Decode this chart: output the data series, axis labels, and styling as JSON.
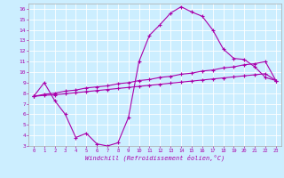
{
  "xlabel": "Windchill (Refroidissement éolien,°C)",
  "ylabel": "",
  "bg_color": "#cceeff",
  "line_color": "#aa00aa",
  "grid_color": "#ffffff",
  "xmin": -0.5,
  "xmax": 23.5,
  "ymin": 3,
  "ymax": 16,
  "yticks": [
    3,
    4,
    5,
    6,
    7,
    8,
    9,
    10,
    11,
    12,
    13,
    14,
    15,
    16
  ],
  "xticks": [
    0,
    1,
    2,
    3,
    4,
    5,
    6,
    7,
    8,
    9,
    10,
    11,
    12,
    13,
    14,
    15,
    16,
    17,
    18,
    19,
    20,
    21,
    22,
    23
  ],
  "line1_x": [
    0,
    1,
    2,
    3,
    4,
    5,
    6,
    7,
    8,
    9,
    10,
    11,
    12,
    13,
    14,
    15,
    16,
    17,
    18,
    19,
    20,
    21,
    22,
    23
  ],
  "line1_y": [
    7.7,
    9.0,
    7.3,
    6.0,
    3.8,
    4.2,
    3.2,
    3.0,
    3.3,
    5.7,
    11.0,
    13.5,
    14.5,
    15.6,
    16.2,
    15.7,
    15.3,
    14.0,
    12.2,
    11.3,
    11.2,
    10.5,
    9.5,
    9.2
  ],
  "line2_x": [
    0,
    1,
    2,
    3,
    4,
    5,
    6,
    7,
    8,
    9,
    10,
    11,
    12,
    13,
    14,
    15,
    16,
    17,
    18,
    19,
    20,
    21,
    22,
    23
  ],
  "line2_y": [
    7.7,
    7.9,
    8.0,
    8.2,
    8.3,
    8.5,
    8.6,
    8.7,
    8.9,
    9.0,
    9.2,
    9.3,
    9.5,
    9.6,
    9.8,
    9.9,
    10.1,
    10.2,
    10.4,
    10.5,
    10.7,
    10.8,
    11.0,
    9.2
  ],
  "line3_x": [
    0,
    1,
    2,
    3,
    4,
    5,
    6,
    7,
    8,
    9,
    10,
    11,
    12,
    13,
    14,
    15,
    16,
    17,
    18,
    19,
    20,
    21,
    22,
    23
  ],
  "line3_y": [
    7.7,
    7.8,
    7.85,
    7.95,
    8.05,
    8.15,
    8.25,
    8.35,
    8.45,
    8.55,
    8.65,
    8.75,
    8.85,
    8.95,
    9.05,
    9.15,
    9.25,
    9.35,
    9.45,
    9.55,
    9.65,
    9.75,
    9.85,
    9.2
  ]
}
